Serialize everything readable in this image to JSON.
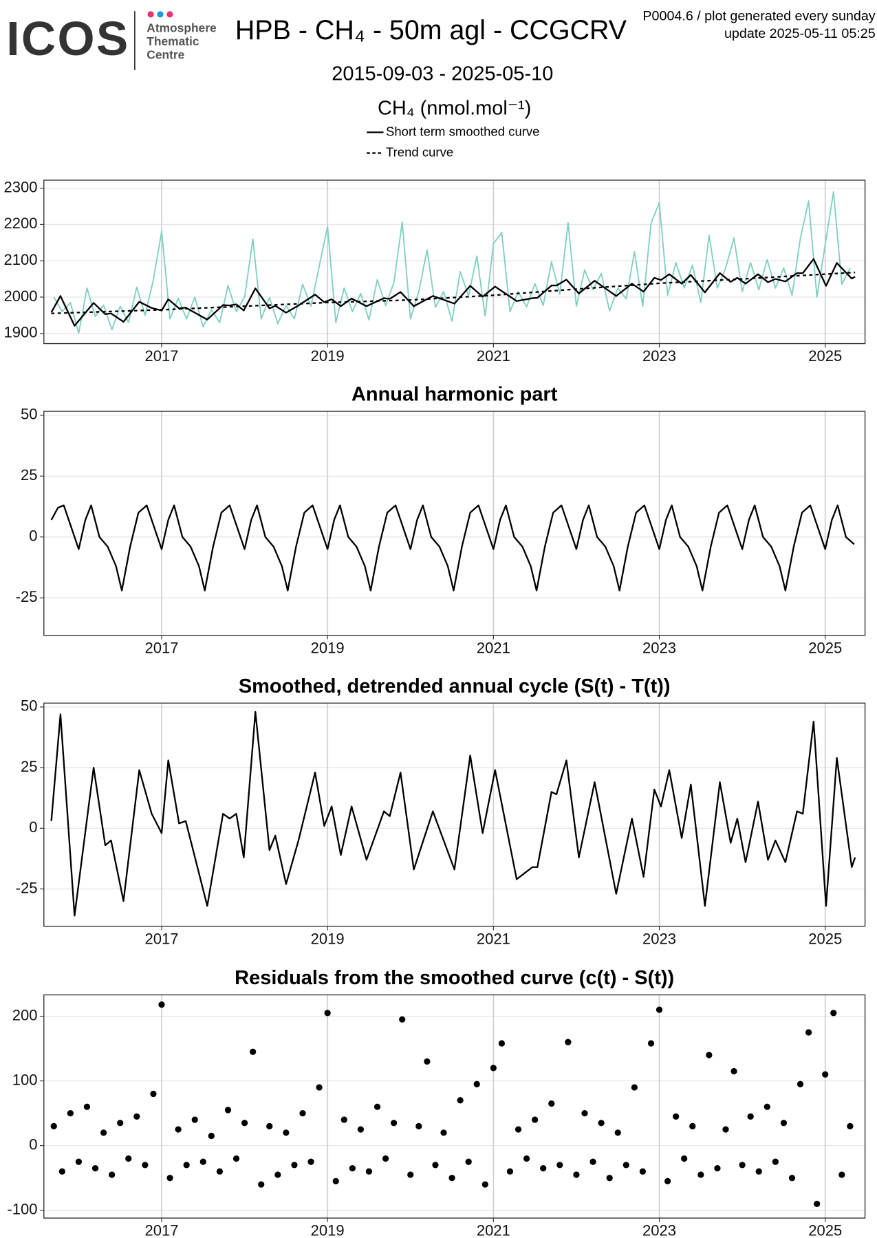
{
  "header": {
    "logo": "ICOS",
    "logo_lines": [
      "Atmosphere",
      "Thematic",
      "Centre"
    ],
    "title": "HPB - CH₄ - 50m agl - CCGCRV",
    "note": "P0004.6 / plot generated every sunday",
    "update": "update  2025-05-11 05:25",
    "subtitle": "2015-09-03 - 2025-05-10",
    "unit": "CH₄ (nmol.mol⁻¹)"
  },
  "chart_data": [
    {
      "type": "line",
      "legend": "top",
      "grid": true,
      "xlim": [
        2015.58,
        2025.48
      ],
      "xticks": [
        2017,
        2019,
        2021,
        2023,
        2025
      ],
      "ylim": [
        1872,
        2322
      ],
      "yticks": [
        1900,
        2000,
        2100,
        2200,
        2300
      ],
      "series": [
        {
          "color": "#80cfc0",
          "linestyle": "solid",
          "x": [
            2015.7,
            2015.8,
            2015.9,
            2016.0,
            2016.1,
            2016.2,
            2016.3,
            2016.4,
            2016.5,
            2016.6,
            2016.7,
            2016.8,
            2016.9,
            2017.0,
            2017.1,
            2017.2,
            2017.3,
            2017.4,
            2017.5,
            2017.6,
            2017.7,
            2017.8,
            2017.9,
            2018.0,
            2018.1,
            2018.2,
            2018.3,
            2018.4,
            2018.5,
            2018.6,
            2018.7,
            2018.8,
            2018.9,
            2019.0,
            2019.1,
            2019.2,
            2019.3,
            2019.4,
            2019.5,
            2019.6,
            2019.7,
            2019.8,
            2019.9,
            2020.0,
            2020.1,
            2020.2,
            2020.3,
            2020.4,
            2020.5,
            2020.6,
            2020.7,
            2020.8,
            2020.9,
            2021.0,
            2021.1,
            2021.2,
            2021.3,
            2021.4,
            2021.5,
            2021.6,
            2021.7,
            2021.8,
            2021.9,
            2022.0,
            2022.1,
            2022.2,
            2022.3,
            2022.4,
            2022.5,
            2022.6,
            2022.7,
            2022.8,
            2022.9,
            2023.0,
            2023.1,
            2023.2,
            2023.3,
            2023.4,
            2023.5,
            2023.6,
            2023.7,
            2023.8,
            2023.9,
            2024.0,
            2024.1,
            2024.2,
            2024.3,
            2024.4,
            2024.5,
            2024.6,
            2024.7,
            2024.8,
            2024.9,
            2025.0,
            2025.1,
            2025.2,
            2025.3
          ],
          "values": [
            2000,
            1960,
            1985,
            1900,
            2025,
            1947,
            1978,
            1910,
            1975,
            1930,
            2027,
            1950,
            2048,
            2181,
            1940,
            1997,
            1940,
            2000,
            1918,
            1965,
            1930,
            2032,
            1960,
            2000,
            2160,
            1940,
            1999,
            1927,
            1977,
            1940,
            2035,
            1975,
            2085,
            2195,
            1930,
            2025,
            1960,
            2010,
            1937,
            2048,
            1977,
            2040,
            2207,
            1940,
            2015,
            2130,
            1972,
            2015,
            1934,
            2070,
            2003,
            2113,
            1948,
            2147,
            2178,
            1960,
            2015,
            1973,
            2037,
            1977,
            2097,
            2008,
            2205,
            1975,
            2075,
            2020,
            2065,
            1962,
            2025,
            1995,
            2125,
            1975,
            2203,
            2260,
            2005,
            2095,
            2025,
            2088,
            1985,
            2170,
            2025,
            2080,
            2163,
            2015,
            2095,
            2020,
            2103,
            2025,
            2080,
            2005,
            2161,
            2265,
            2000,
            2145,
            2290,
            2035,
            2080
          ]
        },
        {
          "name": "Short term smoothed curve",
          "color": "#000000",
          "linestyle": "solid",
          "x": [
            2015.67,
            2015.78,
            2015.95,
            2016.18,
            2016.32,
            2016.39,
            2016.54,
            2016.73,
            2016.88,
            2017.0,
            2017.08,
            2017.21,
            2017.29,
            2017.55,
            2017.74,
            2017.82,
            2017.9,
            2017.99,
            2018.13,
            2018.3,
            2018.37,
            2018.5,
            2018.65,
            2018.85,
            2018.96,
            2019.05,
            2019.16,
            2019.29,
            2019.47,
            2019.68,
            2019.75,
            2019.88,
            2020.04,
            2020.27,
            2020.53,
            2020.72,
            2020.87,
            2021.02,
            2021.28,
            2021.47,
            2021.53,
            2021.7,
            2021.76,
            2021.88,
            2022.03,
            2022.22,
            2022.48,
            2022.67,
            2022.81,
            2022.94,
            2023.02,
            2023.12,
            2023.27,
            2023.38,
            2023.55,
            2023.73,
            2023.86,
            2023.94,
            2024.04,
            2024.19,
            2024.31,
            2024.4,
            2024.52,
            2024.66,
            2024.73,
            2024.86,
            2025.01,
            2025.14,
            2025.32,
            2025.36
          ],
          "values": [
            1958,
            2003,
            1921,
            1984,
            1953,
            1955,
            1932,
            1987,
            1970,
            1963,
            1994,
            1969,
            1971,
            1938,
            1978,
            1977,
            1980,
            1963,
            2024,
            1969,
            1976,
            1957,
            1977,
            2007,
            1986,
            1994,
            1975,
            1996,
            1975,
            1997,
            1995,
            2014,
            1975,
            2003,
            1982,
            2031,
            2001,
            2029,
            1989,
            1997,
            1998,
            2032,
            2032,
            2048,
            2010,
            2045,
            2003,
            2037,
            2015,
            2053,
            2047,
            2063,
            2037,
            2061,
            2013,
            2066,
            2042,
            2053,
            2037,
            2063,
            2041,
            2050,
            2043,
            2066,
            2066,
            2105,
            2031,
            2094,
            2051,
            2056
          ]
        },
        {
          "name": "Trend curve",
          "color": "#000000",
          "linestyle": "dashed",
          "x": [
            2015.67,
            2017,
            2018,
            2019,
            2020,
            2021,
            2022,
            2023,
            2024,
            2025.36
          ],
          "values": [
            1955,
            1965,
            1975,
            1985,
            1992,
            2005,
            2022,
            2038,
            2050,
            2068
          ]
        }
      ]
    },
    {
      "type": "line",
      "title": "Annual harmonic part",
      "grid": true,
      "xlim": [
        2015.58,
        2025.48
      ],
      "xticks": [
        2017,
        2019,
        2021,
        2023,
        2025
      ],
      "ylim": [
        -40.4,
        51.6
      ],
      "yticks": [
        -25,
        0,
        25,
        50
      ],
      "series": [
        {
          "color": "#000000",
          "linestyle": "solid",
          "x": [
            2015.67,
            2015.75,
            2015.82,
            2015.92,
            2016,
            2016.08,
            2016.15,
            2016.25,
            2016.35,
            2016.45,
            2016.52,
            2016.62,
            2016.72,
            2016.82,
            2016.92,
            2017,
            2017.08,
            2017.15,
            2017.25,
            2017.35,
            2017.45,
            2017.52,
            2017.62,
            2017.72,
            2017.82,
            2017.92,
            2018,
            2018.08,
            2018.15,
            2018.25,
            2018.35,
            2018.45,
            2018.52,
            2018.62,
            2018.72,
            2018.82,
            2018.92,
            2019,
            2019.08,
            2019.15,
            2019.25,
            2019.35,
            2019.45,
            2019.52,
            2019.62,
            2019.72,
            2019.82,
            2019.92,
            2020,
            2020.08,
            2020.15,
            2020.25,
            2020.35,
            2020.45,
            2020.52,
            2020.62,
            2020.72,
            2020.82,
            2020.92,
            2021,
            2021.08,
            2021.15,
            2021.25,
            2021.35,
            2021.45,
            2021.52,
            2021.62,
            2021.72,
            2021.82,
            2021.92,
            2022,
            2022.08,
            2022.15,
            2022.25,
            2022.35,
            2022.45,
            2022.52,
            2022.62,
            2022.72,
            2022.82,
            2022.92,
            2023,
            2023.08,
            2023.15,
            2023.25,
            2023.35,
            2023.45,
            2023.52,
            2023.62,
            2023.72,
            2023.82,
            2023.92,
            2024,
            2024.08,
            2024.15,
            2024.25,
            2024.35,
            2024.45,
            2024.52,
            2024.62,
            2024.72,
            2024.82,
            2024.92,
            2025,
            2025.08,
            2025.15,
            2025.25,
            2025.35
          ],
          "values": [
            7,
            12,
            13,
            3,
            -5,
            7,
            13,
            0,
            -4,
            -12,
            -22,
            -4,
            10,
            13,
            3,
            -5,
            7,
            13,
            0,
            -4,
            -12,
            -22,
            -4,
            10,
            13,
            3,
            -5,
            7,
            13,
            0,
            -4,
            -12,
            -22,
            -4,
            10,
            13,
            3,
            -5,
            7,
            13,
            0,
            -4,
            -12,
            -22,
            -4,
            10,
            13,
            3,
            -5,
            7,
            13,
            0,
            -4,
            -12,
            -22,
            -4,
            10,
            13,
            3,
            -5,
            7,
            13,
            0,
            -4,
            -12,
            -22,
            -4,
            10,
            13,
            3,
            -5,
            7,
            13,
            0,
            -4,
            -12,
            -22,
            -4,
            10,
            13,
            3,
            -5,
            7,
            13,
            0,
            -4,
            -12,
            -22,
            -4,
            10,
            13,
            3,
            -5,
            7,
            13,
            0,
            -4,
            -12,
            -22,
            -4,
            10,
            13,
            3,
            -5,
            7,
            13,
            0,
            -3
          ]
        }
      ]
    },
    {
      "type": "line",
      "title": "Smoothed, detrended annual cycle (S(t) - T(t))",
      "grid": true,
      "xlim": [
        2015.58,
        2025.48
      ],
      "xticks": [
        2017,
        2019,
        2021,
        2023,
        2025
      ],
      "ylim": [
        -40.4,
        51.6
      ],
      "yticks": [
        -25,
        0,
        25,
        50
      ],
      "series": [
        {
          "color": "#000000",
          "linestyle": "solid",
          "x": [
            2015.67,
            2015.78,
            2015.95,
            2016.18,
            2016.32,
            2016.39,
            2016.54,
            2016.73,
            2016.88,
            2017.0,
            2017.08,
            2017.21,
            2017.29,
            2017.55,
            2017.74,
            2017.82,
            2017.9,
            2017.99,
            2018.13,
            2018.3,
            2018.37,
            2018.5,
            2018.65,
            2018.85,
            2018.96,
            2019.05,
            2019.16,
            2019.29,
            2019.47,
            2019.68,
            2019.75,
            2019.88,
            2020.04,
            2020.27,
            2020.53,
            2020.72,
            2020.87,
            2021.02,
            2021.28,
            2021.47,
            2021.53,
            2021.7,
            2021.76,
            2021.88,
            2022.03,
            2022.22,
            2022.48,
            2022.67,
            2022.81,
            2022.94,
            2023.02,
            2023.12,
            2023.27,
            2023.38,
            2023.55,
            2023.73,
            2023.86,
            2023.94,
            2024.04,
            2024.19,
            2024.31,
            2024.4,
            2024.52,
            2024.66,
            2024.73,
            2024.86,
            2025.01,
            2025.14,
            2025.32,
            2025.36
          ],
          "values": [
            3,
            47,
            -36,
            25,
            -7,
            -5,
            -30,
            24,
            6,
            -2,
            28,
            2,
            3,
            -32,
            6,
            4,
            6,
            -12,
            48,
            -9,
            -3,
            -23,
            -5,
            23,
            1,
            9,
            -11,
            9,
            -13,
            7,
            5,
            23,
            -17,
            7,
            -17,
            30,
            -2,
            24,
            -21,
            -16,
            -16,
            15,
            14,
            28,
            -12,
            19,
            -27,
            4,
            -20,
            16,
            9,
            24,
            -4,
            18,
            -32,
            19,
            -6,
            4,
            -14,
            11,
            -13,
            -5,
            -14,
            7,
            6,
            44,
            -32,
            29,
            -16,
            -12
          ]
        }
      ]
    },
    {
      "type": "scatter",
      "title": "Residuals from the smoothed curve (c(t) - S(t))",
      "grid": true,
      "color": "#000000",
      "xlim": [
        2015.58,
        2025.48
      ],
      "xticks": [
        2017,
        2019,
        2021,
        2023,
        2025
      ],
      "ylim": [
        -112,
        233
      ],
      "yticks": [
        -100,
        0,
        100,
        200
      ],
      "x": [
        2015.7,
        2015.8,
        2015.9,
        2016.0,
        2016.1,
        2016.2,
        2016.3,
        2016.4,
        2016.5,
        2016.6,
        2016.7,
        2016.8,
        2016.9,
        2017.0,
        2017.1,
        2017.2,
        2017.3,
        2017.4,
        2017.5,
        2017.6,
        2017.7,
        2017.8,
        2017.9,
        2018.0,
        2018.1,
        2018.2,
        2018.3,
        2018.4,
        2018.5,
        2018.6,
        2018.7,
        2018.8,
        2018.9,
        2019.0,
        2019.1,
        2019.2,
        2019.3,
        2019.4,
        2019.5,
        2019.6,
        2019.7,
        2019.8,
        2019.9,
        2020.0,
        2020.1,
        2020.2,
        2020.3,
        2020.4,
        2020.5,
        2020.6,
        2020.7,
        2020.8,
        2020.9,
        2021.0,
        2021.1,
        2021.2,
        2021.3,
        2021.4,
        2021.5,
        2021.6,
        2021.7,
        2021.8,
        2021.9,
        2022.0,
        2022.1,
        2022.2,
        2022.3,
        2022.4,
        2022.5,
        2022.6,
        2022.7,
        2022.8,
        2022.9,
        2023.0,
        2023.1,
        2023.2,
        2023.3,
        2023.4,
        2023.5,
        2023.6,
        2023.7,
        2023.8,
        2023.9,
        2024.0,
        2024.1,
        2024.2,
        2024.3,
        2024.4,
        2024.5,
        2024.6,
        2024.7,
        2024.8,
        2024.9,
        2025.0,
        2025.1,
        2025.2,
        2025.3
      ],
      "values": [
        30,
        -40,
        50,
        -25,
        60,
        -35,
        20,
        -45,
        35,
        -20,
        45,
        -30,
        80,
        218,
        -50,
        25,
        -30,
        40,
        -25,
        15,
        -40,
        55,
        -20,
        35,
        145,
        -60,
        30,
        -45,
        20,
        -30,
        50,
        -25,
        90,
        205,
        -55,
        40,
        -35,
        25,
        -40,
        60,
        -20,
        35,
        195,
        -45,
        30,
        130,
        -30,
        20,
        -50,
        70,
        -25,
        95,
        -60,
        120,
        158,
        -40,
        25,
        -20,
        40,
        -35,
        65,
        -30,
        160,
        -45,
        50,
        -25,
        35,
        -50,
        20,
        -30,
        90,
        -40,
        158,
        210,
        -55,
        45,
        -20,
        30,
        -45,
        140,
        -35,
        25,
        115,
        -30,
        45,
        -40,
        60,
        -25,
        35,
        -50,
        95,
        175,
        -90,
        110,
        205,
        -45,
        30
      ]
    }
  ]
}
